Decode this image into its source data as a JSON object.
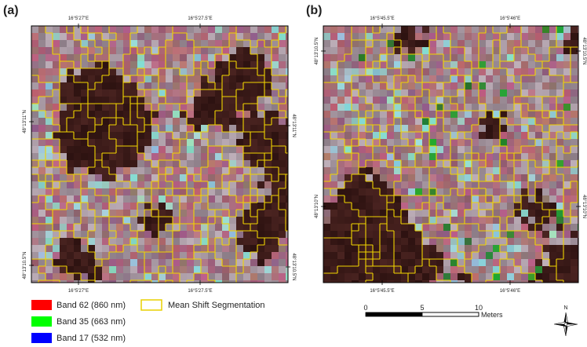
{
  "panels": [
    {
      "label": "(a)",
      "top_labels": [
        "16°5'27\"E",
        "16°5'27.5\"E"
      ],
      "bottom_labels": [
        "16°5'27\"E",
        "16°5'27.5\"E"
      ],
      "left_labels": [
        "48°13'11\"N",
        "48°13'10.5\"N"
      ],
      "right_labels": [
        "48°13'11\"N",
        "48°13'10.5\"N"
      ]
    },
    {
      "label": "(b)",
      "top_labels": [
        "16°5'45.5\"E",
        "16°5'46\"E"
      ],
      "bottom_labels": [
        "16°5'45.5\"E",
        "16°5'46\"E"
      ],
      "left_labels": [
        "48°13'10.5\"N",
        "48°13'10\"N"
      ],
      "right_labels": [
        "48°13'10.5\"N",
        "48°13'10\"N"
      ]
    }
  ],
  "legend": {
    "items": [
      "Band 62 (860 nm)",
      "Band 35 (663 nm)",
      "Band 17 (532 nm)",
      "Mean Shift Segmentation"
    ]
  },
  "scale_bar": {
    "ticks": [
      "0",
      "5",
      "10"
    ],
    "unit": "Meters"
  },
  "north_arrow": "N"
}
